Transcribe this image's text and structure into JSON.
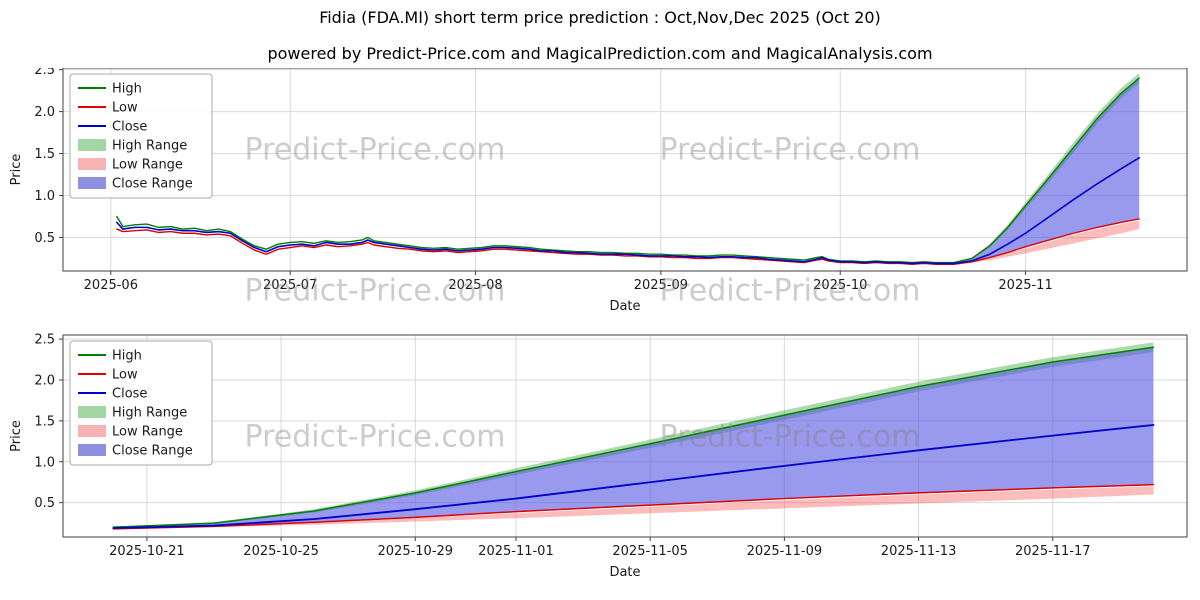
{
  "header": {
    "title": "Fidia (FDA.MI) short term price prediction : Oct,Nov,Dec 2025 (Oct 20)",
    "subtitle": "powered by Predict-Price.com and MagicalPrediction.com and MagicalAnalysis.com"
  },
  "watermark": {
    "text": "Predict-Price.com"
  },
  "colors": {
    "high": "#008000",
    "low": "#dd0000",
    "close": "#0000cc",
    "high_range_fill": "rgba(0,140,0,0.32)",
    "low_range_fill": "rgba(250,80,80,0.38)",
    "close_range_fill": "rgba(85,85,225,0.60)",
    "grid": "#d9d9d9",
    "axis": "#404040",
    "tick_text": "#1a1a1a",
    "watermark": "rgba(128,128,128,0.40)",
    "legend_border": "#aaaaaa"
  },
  "legend": [
    {
      "label": "High",
      "swatch": "line",
      "color": "#008000"
    },
    {
      "label": "Low",
      "swatch": "line",
      "color": "#dd0000"
    },
    {
      "label": "Close",
      "swatch": "line",
      "color": "#0000cc"
    },
    {
      "label": "High Range",
      "swatch": "patch",
      "color": "#a3d6a3"
    },
    {
      "label": "Low Range",
      "swatch": "patch",
      "color": "#f5b3b3"
    },
    {
      "label": "Close Range",
      "swatch": "patch",
      "color": "#8f8fe0"
    }
  ],
  "chart_data": [
    {
      "name": "history-and-forecast",
      "type": "line",
      "xlabel": "Date",
      "ylabel": "Price",
      "xlim": [
        -8,
        180
      ],
      "ylim": [
        0.1,
        2.52
      ],
      "xticks": [
        {
          "v": 0,
          "label": "2025-06"
        },
        {
          "v": 30,
          "label": "2025-07"
        },
        {
          "v": 61,
          "label": "2025-08"
        },
        {
          "v": 92,
          "label": "2025-09"
        },
        {
          "v": 122,
          "label": "2025-10"
        },
        {
          "v": 153,
          "label": "2025-11"
        }
      ],
      "yticks": [
        {
          "v": 0.5,
          "label": "0.5"
        },
        {
          "v": 1.0,
          "label": "1.0"
        },
        {
          "v": 1.5,
          "label": "1.5"
        },
        {
          "v": 2.0,
          "label": "2.0"
        },
        {
          "v": 2.5,
          "label": "2.5"
        }
      ],
      "bands": [
        {
          "name": "high-range",
          "color_key": "high_range_fill",
          "x": [
            141,
            144,
            147,
            150,
            153,
            157,
            161,
            165,
            169,
            172
          ],
          "hi": [
            0.2,
            0.26,
            0.42,
            0.65,
            0.92,
            1.27,
            1.63,
            1.98,
            2.28,
            2.46
          ],
          "lo": [
            0.2,
            0.24,
            0.38,
            0.59,
            0.84,
            1.17,
            1.51,
            1.86,
            2.16,
            2.34
          ]
        },
        {
          "name": "low-range",
          "color_key": "low_range_fill",
          "x": [
            141,
            144,
            147,
            150,
            153,
            157,
            161,
            165,
            169,
            172
          ],
          "hi": [
            0.18,
            0.21,
            0.25,
            0.31,
            0.37,
            0.45,
            0.53,
            0.6,
            0.66,
            0.7
          ],
          "lo": [
            0.18,
            0.2,
            0.23,
            0.27,
            0.31,
            0.37,
            0.43,
            0.49,
            0.55,
            0.6
          ]
        },
        {
          "name": "close-range",
          "color_key": "close_range_fill",
          "x": [
            141,
            144,
            147,
            150,
            153,
            157,
            161,
            165,
            169,
            172
          ],
          "hi": [
            0.19,
            0.25,
            0.4,
            0.62,
            0.88,
            1.22,
            1.57,
            1.92,
            2.22,
            2.4
          ],
          "lo": [
            0.19,
            0.21,
            0.26,
            0.32,
            0.39,
            0.47,
            0.55,
            0.62,
            0.68,
            0.72
          ]
        }
      ],
      "lines": [
        {
          "name": "high",
          "color_key": "high",
          "width": 1.4,
          "x": [
            1,
            2,
            4,
            6,
            8,
            10,
            12,
            14,
            16,
            18,
            20,
            22,
            24,
            26,
            28,
            30,
            32,
            34,
            36,
            38,
            40,
            42,
            43,
            44,
            46,
            48,
            50,
            52,
            54,
            56,
            58,
            60,
            62,
            64,
            66,
            68,
            70,
            72,
            74,
            76,
            78,
            80,
            82,
            84,
            86,
            88,
            90,
            92,
            94,
            96,
            98,
            100,
            102,
            104,
            106,
            108,
            110,
            112,
            114,
            116,
            118,
            119,
            120,
            122,
            124,
            126,
            128,
            130,
            132,
            134,
            136,
            138,
            140,
            141,
            144,
            147,
            150,
            153,
            157,
            161,
            165,
            169,
            172
          ],
          "y": [
            0.75,
            0.63,
            0.65,
            0.66,
            0.62,
            0.63,
            0.6,
            0.61,
            0.58,
            0.6,
            0.57,
            0.48,
            0.4,
            0.36,
            0.42,
            0.44,
            0.45,
            0.43,
            0.46,
            0.44,
            0.45,
            0.47,
            0.5,
            0.46,
            0.44,
            0.42,
            0.4,
            0.38,
            0.37,
            0.38,
            0.36,
            0.37,
            0.38,
            0.4,
            0.4,
            0.39,
            0.38,
            0.36,
            0.35,
            0.34,
            0.33,
            0.33,
            0.32,
            0.32,
            0.31,
            0.31,
            0.3,
            0.3,
            0.29,
            0.29,
            0.28,
            0.28,
            0.29,
            0.29,
            0.28,
            0.27,
            0.26,
            0.25,
            0.24,
            0.23,
            0.26,
            0.27,
            0.24,
            0.22,
            0.22,
            0.21,
            0.22,
            0.21,
            0.21,
            0.2,
            0.21,
            0.2,
            0.2,
            0.2,
            0.25,
            0.4,
            0.62,
            0.88,
            1.22,
            1.57,
            1.92,
            2.22,
            2.4
          ]
        },
        {
          "name": "low",
          "color_key": "low",
          "width": 1.4,
          "x": [
            1,
            2,
            4,
            6,
            8,
            10,
            12,
            14,
            16,
            18,
            20,
            22,
            24,
            26,
            28,
            30,
            32,
            34,
            36,
            38,
            40,
            42,
            43,
            44,
            46,
            48,
            50,
            52,
            54,
            56,
            58,
            60,
            62,
            64,
            66,
            68,
            70,
            72,
            74,
            76,
            78,
            80,
            82,
            84,
            86,
            88,
            90,
            92,
            94,
            96,
            98,
            100,
            102,
            104,
            106,
            108,
            110,
            112,
            114,
            116,
            118,
            119,
            120,
            122,
            124,
            126,
            128,
            130,
            132,
            134,
            136,
            138,
            140,
            141,
            144,
            147,
            150,
            153,
            157,
            161,
            165,
            169,
            172
          ],
          "y": [
            0.6,
            0.57,
            0.58,
            0.59,
            0.56,
            0.57,
            0.55,
            0.55,
            0.53,
            0.54,
            0.52,
            0.43,
            0.35,
            0.3,
            0.36,
            0.38,
            0.4,
            0.38,
            0.41,
            0.39,
            0.4,
            0.42,
            0.44,
            0.41,
            0.39,
            0.37,
            0.36,
            0.34,
            0.33,
            0.34,
            0.32,
            0.33,
            0.34,
            0.36,
            0.36,
            0.35,
            0.34,
            0.33,
            0.32,
            0.31,
            0.3,
            0.3,
            0.29,
            0.29,
            0.28,
            0.28,
            0.27,
            0.27,
            0.26,
            0.26,
            0.25,
            0.25,
            0.26,
            0.26,
            0.25,
            0.24,
            0.23,
            0.22,
            0.21,
            0.2,
            0.23,
            0.24,
            0.22,
            0.2,
            0.2,
            0.19,
            0.2,
            0.19,
            0.19,
            0.18,
            0.19,
            0.18,
            0.18,
            0.18,
            0.21,
            0.26,
            0.32,
            0.39,
            0.47,
            0.55,
            0.62,
            0.68,
            0.72
          ]
        },
        {
          "name": "close",
          "color_key": "close",
          "width": 1.6,
          "x": [
            1,
            2,
            4,
            6,
            8,
            10,
            12,
            14,
            16,
            18,
            20,
            22,
            24,
            26,
            28,
            30,
            32,
            34,
            36,
            38,
            40,
            42,
            43,
            44,
            46,
            48,
            50,
            52,
            54,
            56,
            58,
            60,
            62,
            64,
            66,
            68,
            70,
            72,
            74,
            76,
            78,
            80,
            82,
            84,
            86,
            88,
            90,
            92,
            94,
            96,
            98,
            100,
            102,
            104,
            106,
            108,
            110,
            112,
            114,
            116,
            118,
            119,
            120,
            122,
            124,
            126,
            128,
            130,
            132,
            134,
            136,
            138,
            140,
            141,
            144,
            147,
            150,
            153,
            157,
            161,
            165,
            169,
            172
          ],
          "y": [
            0.68,
            0.6,
            0.62,
            0.62,
            0.59,
            0.6,
            0.58,
            0.58,
            0.56,
            0.57,
            0.55,
            0.46,
            0.38,
            0.33,
            0.39,
            0.41,
            0.42,
            0.4,
            0.44,
            0.42,
            0.42,
            0.44,
            0.47,
            0.44,
            0.42,
            0.4,
            0.38,
            0.36,
            0.35,
            0.36,
            0.34,
            0.35,
            0.36,
            0.38,
            0.38,
            0.37,
            0.36,
            0.34,
            0.34,
            0.32,
            0.32,
            0.31,
            0.3,
            0.3,
            0.3,
            0.29,
            0.28,
            0.28,
            0.28,
            0.27,
            0.27,
            0.26,
            0.27,
            0.27,
            0.26,
            0.26,
            0.24,
            0.23,
            0.22,
            0.21,
            0.24,
            0.26,
            0.23,
            0.21,
            0.21,
            0.2,
            0.21,
            0.2,
            0.2,
            0.19,
            0.2,
            0.19,
            0.19,
            0.19,
            0.22,
            0.3,
            0.42,
            0.55,
            0.75,
            0.95,
            1.14,
            1.32,
            1.45
          ]
        }
      ]
    },
    {
      "name": "forecast-zoom",
      "type": "line",
      "xlabel": "Date",
      "ylabel": "Price",
      "xlim": [
        -1.5,
        32
      ],
      "ylim": [
        0.08,
        2.55
      ],
      "xticks": [
        {
          "v": 1,
          "label": "2025-10-21"
        },
        {
          "v": 5,
          "label": "2025-10-25"
        },
        {
          "v": 9,
          "label": "2025-10-29"
        },
        {
          "v": 12,
          "label": "2025-11-01"
        },
        {
          "v": 16,
          "label": "2025-11-05"
        },
        {
          "v": 20,
          "label": "2025-11-09"
        },
        {
          "v": 24,
          "label": "2025-11-13"
        },
        {
          "v": 28,
          "label": "2025-11-17"
        }
      ],
      "yticks": [
        {
          "v": 0.5,
          "label": "0.5"
        },
        {
          "v": 1.0,
          "label": "1.0"
        },
        {
          "v": 1.5,
          "label": "1.5"
        },
        {
          "v": 2.0,
          "label": "2.0"
        },
        {
          "v": 2.5,
          "label": "2.5"
        }
      ],
      "bands": [
        {
          "name": "high-range",
          "color_key": "high_range_fill",
          "x": [
            0,
            3,
            6,
            9,
            12,
            16,
            20,
            24,
            28,
            31
          ],
          "hi": [
            0.2,
            0.26,
            0.42,
            0.65,
            0.92,
            1.27,
            1.63,
            1.98,
            2.28,
            2.46
          ],
          "lo": [
            0.2,
            0.24,
            0.38,
            0.59,
            0.84,
            1.17,
            1.51,
            1.86,
            2.16,
            2.34
          ]
        },
        {
          "name": "low-range",
          "color_key": "low_range_fill",
          "x": [
            0,
            3,
            6,
            9,
            12,
            16,
            20,
            24,
            28,
            31
          ],
          "hi": [
            0.18,
            0.21,
            0.25,
            0.31,
            0.37,
            0.45,
            0.53,
            0.6,
            0.66,
            0.7
          ],
          "lo": [
            0.18,
            0.2,
            0.23,
            0.27,
            0.31,
            0.37,
            0.43,
            0.49,
            0.55,
            0.6
          ]
        },
        {
          "name": "close-range",
          "color_key": "close_range_fill",
          "x": [
            0,
            3,
            6,
            9,
            12,
            16,
            20,
            24,
            28,
            31
          ],
          "hi": [
            0.19,
            0.25,
            0.4,
            0.62,
            0.88,
            1.22,
            1.57,
            1.92,
            2.22,
            2.4
          ],
          "lo": [
            0.19,
            0.21,
            0.26,
            0.32,
            0.39,
            0.47,
            0.55,
            0.62,
            0.68,
            0.72
          ]
        }
      ],
      "lines": [
        {
          "name": "high",
          "color_key": "high",
          "width": 1.5,
          "x": [
            0,
            3,
            6,
            9,
            12,
            16,
            20,
            24,
            28,
            31
          ],
          "y": [
            0.2,
            0.25,
            0.4,
            0.62,
            0.88,
            1.22,
            1.57,
            1.92,
            2.22,
            2.4
          ]
        },
        {
          "name": "low",
          "color_key": "low",
          "width": 1.5,
          "x": [
            0,
            3,
            6,
            9,
            12,
            16,
            20,
            24,
            28,
            31
          ],
          "y": [
            0.18,
            0.21,
            0.26,
            0.32,
            0.39,
            0.47,
            0.55,
            0.62,
            0.68,
            0.72
          ]
        },
        {
          "name": "close",
          "color_key": "close",
          "width": 1.8,
          "x": [
            0,
            3,
            6,
            9,
            12,
            16,
            20,
            24,
            28,
            31
          ],
          "y": [
            0.19,
            0.22,
            0.3,
            0.42,
            0.55,
            0.75,
            0.95,
            1.14,
            1.32,
            1.45
          ]
        }
      ]
    }
  ]
}
